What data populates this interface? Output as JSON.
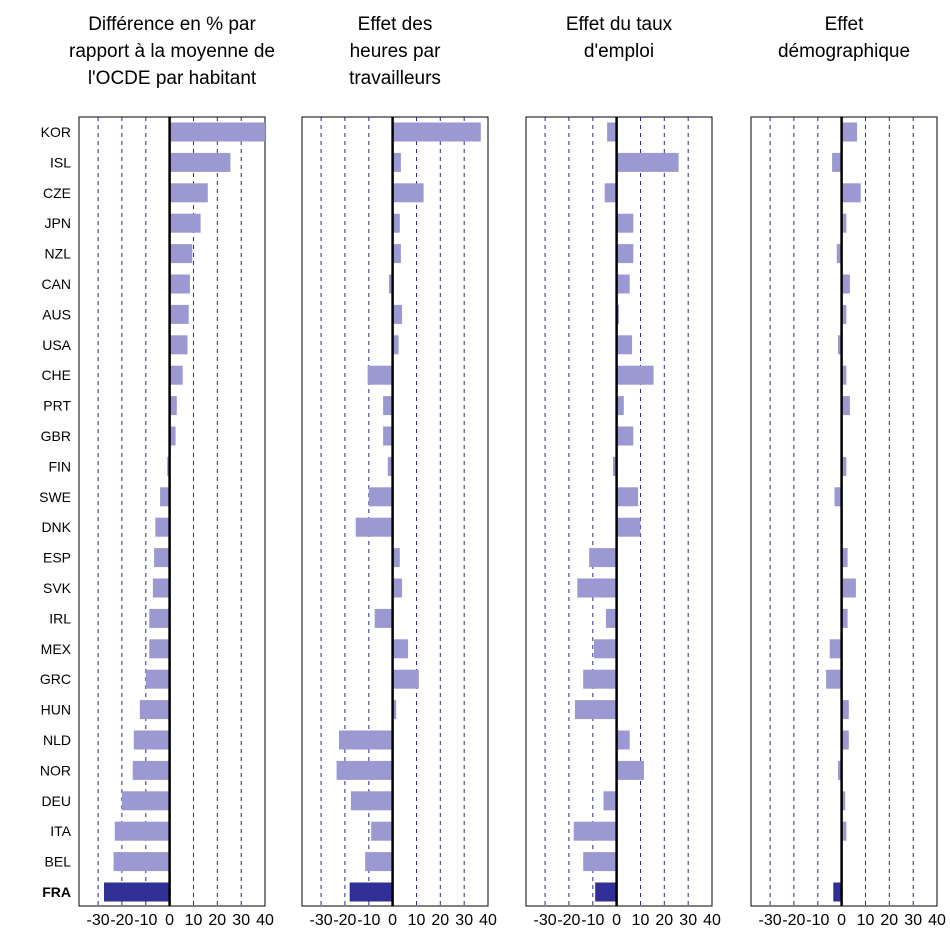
{
  "colors": {
    "bar": "#9b98d2",
    "highlight_bar": "#2f2f96",
    "zero_line": "#000000",
    "grid": "#2a2a8c",
    "frame": "#000000"
  },
  "chart_data": {
    "type": "bar",
    "orientation": "horizontal",
    "categories": [
      "KOR",
      "ISL",
      "CZE",
      "JPN",
      "NZL",
      "CAN",
      "AUS",
      "USA",
      "CHE",
      "PRT",
      "GBR",
      "FIN",
      "SWE",
      "DNK",
      "ESP",
      "SVK",
      "IRL",
      "MEX",
      "GRC",
      "HUN",
      "NLD",
      "NOR",
      "DEU",
      "ITA",
      "BEL",
      "FRA"
    ],
    "highlight_category": "FRA",
    "xlim": [
      -38,
      40
    ],
    "xticks": [
      -30,
      -20,
      -10,
      0,
      10,
      20,
      30,
      40
    ],
    "xtick_labels": [
      "-30",
      "-20",
      "-10",
      "0",
      "10",
      "20",
      "30",
      "40"
    ],
    "grid": true,
    "panels": [
      {
        "title_lines": [
          "Différence en % par",
          "rapport à la moyenne de",
          "l'OCDE par habitant"
        ],
        "values": [
          40,
          25.5,
          16,
          13,
          9.5,
          8.5,
          8,
          7.5,
          5.5,
          3,
          2.5,
          -1,
          -4,
          -6,
          -6.5,
          -7,
          -8.5,
          -8.5,
          -10,
          -12.5,
          -15,
          -15.5,
          -20,
          -23,
          -23.5,
          -27.5
        ]
      },
      {
        "title_lines": [
          "Effet des",
          "heures par",
          "travailleurs"
        ],
        "values": [
          37,
          3.5,
          13,
          3,
          3.5,
          -1.5,
          4,
          2.5,
          -10.5,
          -4,
          -4,
          -2,
          -10,
          -15.5,
          3,
          4,
          -7.5,
          6.5,
          11,
          1.5,
          -22.5,
          -23.5,
          -17.5,
          -9,
          -11.5,
          -18
        ]
      },
      {
        "title_lines": [
          "Effet du taux",
          "d'emploi"
        ],
        "values": [
          -4,
          26,
          -5,
          7,
          7,
          5.5,
          1,
          6.5,
          15.5,
          3,
          7,
          -1.5,
          9,
          10,
          -11.5,
          -16.5,
          -4.5,
          -9.5,
          -14,
          -17.5,
          5.5,
          11.5,
          -5.5,
          -18,
          -14,
          -9
        ]
      },
      {
        "title_lines": [
          "Effet",
          "démographique"
        ],
        "values": [
          6.5,
          -4,
          8,
          2,
          -2,
          3.5,
          2,
          -1.5,
          2,
          3.5,
          0,
          2,
          -3,
          0,
          2.5,
          6,
          2.5,
          -5,
          -6.5,
          3,
          3,
          -1.5,
          1.5,
          2,
          0,
          -3.5
        ]
      }
    ]
  }
}
